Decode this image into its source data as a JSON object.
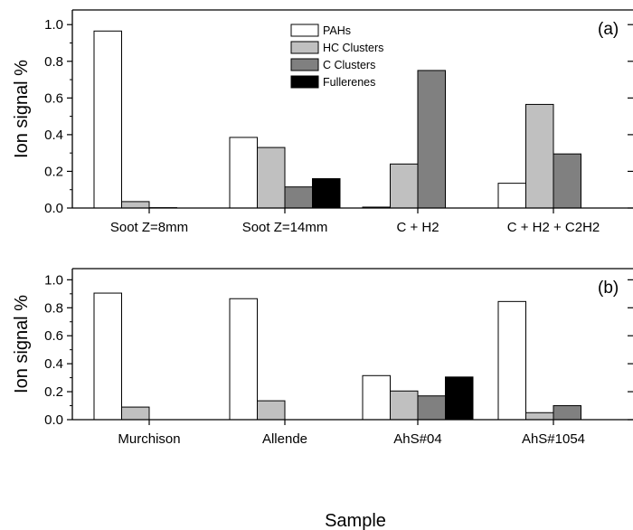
{
  "chart_data": [
    {
      "type": "bar",
      "panel_label": "(a)",
      "categories": [
        "Soot Z=8mm",
        "Soot Z=14mm",
        "C + H2",
        "C + H2 + C2H2"
      ],
      "series": [
        {
          "name": "PAHs",
          "values": [
            0.965,
            0.385,
            0.005,
            0.135
          ]
        },
        {
          "name": "HC Clusters",
          "values": [
            0.035,
            0.33,
            0.24,
            0.565
          ]
        },
        {
          "name": "C Clusters",
          "values": [
            0.002,
            0.115,
            0.75,
            0.295
          ]
        },
        {
          "name": "Fullerenes",
          "values": [
            0,
            0.16,
            0,
            0
          ]
        }
      ],
      "ylabel": "Ion signal %",
      "ylim": [
        0,
        1.08
      ],
      "yticks": [
        "0.0",
        "0.2",
        "0.4",
        "0.6",
        "0.8",
        "1.0"
      ],
      "legend_placement": "top-center",
      "grid": false
    },
    {
      "type": "bar",
      "panel_label": "(b)",
      "categories": [
        "Murchison",
        "Allende",
        "AhS#04",
        "AhS#1054"
      ],
      "series": [
        {
          "name": "PAHs",
          "values": [
            0.905,
            0.865,
            0.315,
            0.845
          ]
        },
        {
          "name": "HC Clusters",
          "values": [
            0.09,
            0.135,
            0.205,
            0.05
          ]
        },
        {
          "name": "C Clusters",
          "values": [
            0,
            0,
            0.17,
            0.1
          ]
        },
        {
          "name": "Fullerenes",
          "values": [
            0,
            0,
            0.305,
            0
          ]
        }
      ],
      "ylabel": "Ion signal %",
      "xlabel": "Sample",
      "ylim": [
        0,
        1.08
      ],
      "yticks": [
        "0.0",
        "0.2",
        "0.4",
        "0.6",
        "0.8",
        "1.0"
      ],
      "grid": false
    }
  ],
  "colors": {
    "PAHs": "#ffffff",
    "HC Clusters": "#c0c0c0",
    "C Clusters": "#808080",
    "Fullerenes": "#000000"
  }
}
